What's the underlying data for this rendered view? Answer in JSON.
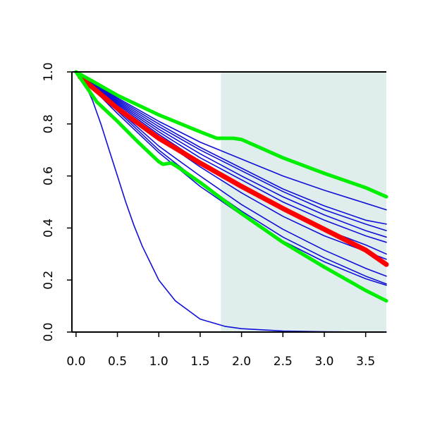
{
  "chart_data": {
    "type": "line",
    "title": "",
    "xlabel": "",
    "ylabel": "",
    "xlim": [
      -0.05,
      3.75
    ],
    "ylim": [
      0.0,
      1.0
    ],
    "x_ticks": [
      "0.0",
      "0.5",
      "1.0",
      "1.5",
      "2.0",
      "2.5",
      "3.0",
      "3.5"
    ],
    "y_ticks": [
      "0.0",
      "0.2",
      "0.4",
      "0.6",
      "0.8",
      "1.0"
    ],
    "grid": false,
    "shaded_region": {
      "x_from": 1.75,
      "x_to": 3.75,
      "color": "#e0eded"
    },
    "colors": {
      "curves": "#1010d8",
      "central": "#ff0000",
      "bounds": "#00ee00",
      "axis": "#000000"
    },
    "series": [
      {
        "role": "curve",
        "x": [
          0,
          0.5,
          1.0,
          1.5,
          2.0,
          2.5,
          3.0,
          3.5,
          3.75
        ],
        "y": [
          1.0,
          0.9,
          0.81,
          0.73,
          0.665,
          0.6,
          0.545,
          0.495,
          0.47
        ]
      },
      {
        "role": "curve",
        "x": [
          0,
          0.5,
          1.0,
          1.5,
          2.0,
          2.5,
          3.0,
          3.5,
          3.75
        ],
        "y": [
          1.0,
          0.895,
          0.8,
          0.71,
          0.63,
          0.55,
          0.485,
          0.43,
          0.415
        ]
      },
      {
        "role": "curve",
        "x": [
          0,
          0.5,
          1.0,
          1.5,
          2.0,
          2.5,
          3.0,
          3.5,
          3.75
        ],
        "y": [
          1.0,
          0.89,
          0.79,
          0.7,
          0.62,
          0.54,
          0.47,
          0.415,
          0.39
        ]
      },
      {
        "role": "curve",
        "x": [
          0,
          0.5,
          1.0,
          1.5,
          2.0,
          2.5,
          3.0,
          3.5,
          3.75
        ],
        "y": [
          1.0,
          0.885,
          0.78,
          0.685,
          0.6,
          0.52,
          0.45,
          0.39,
          0.365
        ]
      },
      {
        "role": "curve",
        "x": [
          0,
          0.5,
          1.0,
          1.5,
          2.0,
          2.5,
          3.0,
          3.5,
          3.75
        ],
        "y": [
          1.0,
          0.88,
          0.77,
          0.67,
          0.585,
          0.5,
          0.43,
          0.37,
          0.345
        ]
      },
      {
        "role": "curve",
        "x": [
          0,
          0.5,
          1.0,
          1.5,
          2.0,
          2.5,
          3.0,
          3.5,
          3.75
        ],
        "y": [
          1.0,
          0.875,
          0.76,
          0.655,
          0.56,
          0.47,
          0.395,
          0.335,
          0.3
        ]
      },
      {
        "role": "curve",
        "x": [
          0,
          0.5,
          1.0,
          1.5,
          2.0,
          2.5,
          3.0,
          3.5,
          3.75
        ],
        "y": [
          1.0,
          0.87,
          0.745,
          0.635,
          0.535,
          0.445,
          0.37,
          0.31,
          0.28
        ]
      },
      {
        "role": "curve",
        "x": [
          0,
          0.5,
          1.0,
          1.5,
          2.0,
          2.5,
          3.0,
          3.5,
          3.75
        ],
        "y": [
          1.0,
          0.855,
          0.715,
          0.6,
          0.49,
          0.395,
          0.315,
          0.245,
          0.215
        ]
      },
      {
        "role": "curve",
        "x": [
          0,
          0.5,
          1.0,
          1.5,
          2.0,
          2.5,
          3.0,
          3.5,
          3.75
        ],
        "y": [
          1.0,
          0.85,
          0.7,
          0.575,
          0.465,
          0.365,
          0.285,
          0.215,
          0.185
        ]
      },
      {
        "role": "curve",
        "x": [
          0,
          0.5,
          1.0,
          1.5,
          2.0,
          2.5,
          3.0,
          3.5,
          3.75
        ],
        "y": [
          1.0,
          0.84,
          0.69,
          0.56,
          0.45,
          0.35,
          0.27,
          0.205,
          0.18
        ]
      },
      {
        "role": "curve",
        "x": [
          0,
          0.1,
          0.2,
          0.3,
          0.4,
          0.5,
          0.6,
          0.7,
          0.8,
          1.0,
          1.2,
          1.5,
          1.8,
          2.0,
          2.5,
          3.0,
          3.5,
          3.75
        ],
        "y": [
          1.0,
          0.96,
          0.89,
          0.8,
          0.7,
          0.6,
          0.5,
          0.41,
          0.33,
          0.2,
          0.12,
          0.05,
          0.022,
          0.013,
          0.004,
          0.001,
          0.0,
          0.0
        ]
      },
      {
        "role": "central",
        "x": [
          0.05,
          0.5,
          1.0,
          1.5,
          2.0,
          2.5,
          3.0,
          3.5,
          3.75
        ],
        "y": [
          0.98,
          0.86,
          0.745,
          0.65,
          0.56,
          0.475,
          0.395,
          0.315,
          0.26
        ]
      },
      {
        "role": "bound",
        "x": [
          0,
          0.5,
          1.0,
          1.5,
          1.7,
          1.8,
          1.9,
          2.0,
          2.5,
          3.0,
          3.5,
          3.75
        ],
        "y": [
          1.0,
          0.91,
          0.835,
          0.77,
          0.745,
          0.745,
          0.745,
          0.74,
          0.67,
          0.61,
          0.555,
          0.52
        ]
      },
      {
        "role": "bound",
        "x": [
          0,
          0.25,
          0.5,
          0.75,
          1.0,
          1.05,
          1.15,
          1.25,
          1.5,
          2.0,
          2.5,
          3.0,
          3.5,
          3.75
        ],
        "y": [
          1.0,
          0.885,
          0.81,
          0.73,
          0.655,
          0.645,
          0.65,
          0.63,
          0.575,
          0.455,
          0.345,
          0.25,
          0.16,
          0.12
        ]
      }
    ]
  }
}
